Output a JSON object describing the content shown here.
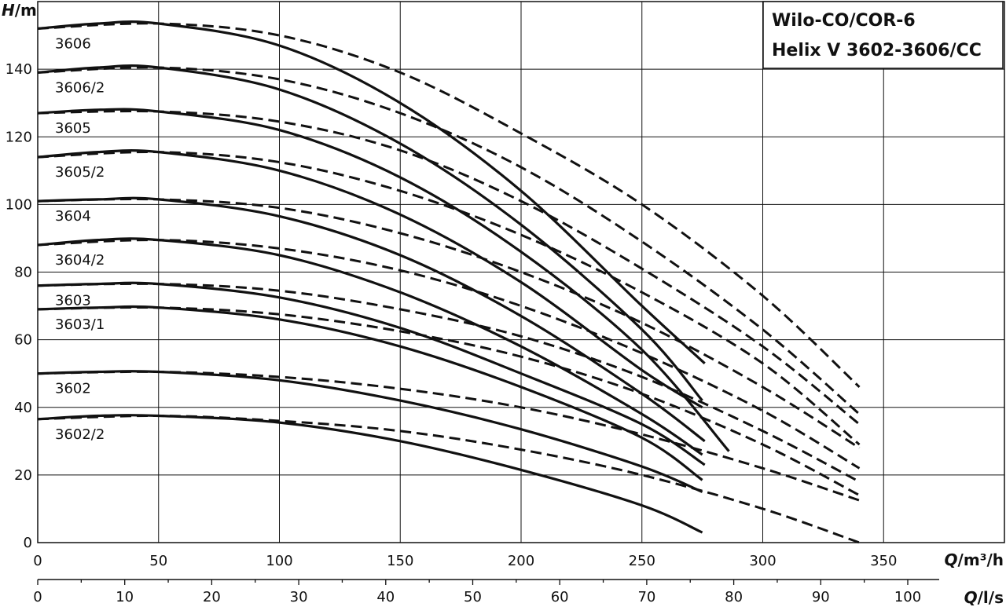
{
  "title_lines": [
    "Wilo-CO/COR-6",
    "Helix V 3602-3606/CC"
  ],
  "chart_data": {
    "type": "line",
    "title": "Wilo-CO/COR-6 Helix V 3602-3606/CC",
    "y_axis": {
      "label_italic": "H",
      "label_unit": "/m",
      "range": [
        0,
        160
      ],
      "ticks": [
        0,
        20,
        40,
        60,
        80,
        100,
        120,
        140
      ],
      "grid": true
    },
    "x_axis_primary": {
      "label_italic": "Q",
      "label_unit": "/m³/h",
      "range": [
        0,
        400
      ],
      "ticks": [
        0,
        50,
        100,
        150,
        200,
        250,
        300,
        350
      ],
      "grid": true
    },
    "x_axis_secondary": {
      "label_italic": "Q",
      "label_unit": "/l/s",
      "ticks": [
        0,
        10,
        20,
        30,
        40,
        50,
        60,
        70,
        80,
        90,
        100
      ]
    },
    "series": [
      {
        "name": "3606",
        "solid": [
          [
            0,
            152
          ],
          [
            25,
            153.5
          ],
          [
            50,
            153.5
          ],
          [
            100,
            147
          ],
          [
            150,
            130
          ],
          [
            200,
            104
          ],
          [
            250,
            70
          ],
          [
            276,
            53
          ]
        ],
        "dashed": [
          [
            0,
            152
          ],
          [
            50,
            153.5
          ],
          [
            100,
            150
          ],
          [
            150,
            139
          ],
          [
            200,
            121
          ],
          [
            250,
            100
          ],
          [
            300,
            73
          ],
          [
            340,
            46
          ]
        ]
      },
      {
        "name": "3606/2",
        "solid": [
          [
            0,
            139
          ],
          [
            25,
            140.5
          ],
          [
            50,
            140.5
          ],
          [
            100,
            134
          ],
          [
            150,
            118
          ],
          [
            200,
            94
          ],
          [
            250,
            63
          ],
          [
            275,
            42
          ]
        ],
        "dashed": [
          [
            0,
            139
          ],
          [
            50,
            140.5
          ],
          [
            100,
            137
          ],
          [
            150,
            127
          ],
          [
            200,
            111
          ],
          [
            250,
            89
          ],
          [
            300,
            63
          ],
          [
            340,
            38
          ]
        ]
      },
      {
        "name": "3605",
        "solid": [
          [
            0,
            127
          ],
          [
            25,
            128
          ],
          [
            50,
            127.5
          ],
          [
            100,
            122
          ],
          [
            150,
            108
          ],
          [
            200,
            86
          ],
          [
            250,
            57
          ],
          [
            286,
            27
          ]
        ],
        "dashed": [
          [
            0,
            127
          ],
          [
            50,
            127.5
          ],
          [
            100,
            124.5
          ],
          [
            150,
            116
          ],
          [
            200,
            101
          ],
          [
            250,
            81
          ],
          [
            300,
            58
          ],
          [
            340,
            35
          ]
        ]
      },
      {
        "name": "3605/2",
        "solid": [
          [
            0,
            114
          ],
          [
            25,
            115.5
          ],
          [
            50,
            115.5
          ],
          [
            100,
            110
          ],
          [
            150,
            97
          ],
          [
            200,
            77
          ],
          [
            250,
            51
          ],
          [
            275,
            40
          ]
        ],
        "dashed": [
          [
            0,
            114
          ],
          [
            50,
            115.5
          ],
          [
            100,
            112.5
          ],
          [
            150,
            104
          ],
          [
            200,
            91
          ],
          [
            250,
            74
          ],
          [
            300,
            53
          ],
          [
            340,
            29
          ]
        ]
      },
      {
        "name": "3604",
        "solid": [
          [
            0,
            101
          ],
          [
            25,
            101.5
          ],
          [
            50,
            101.5
          ],
          [
            100,
            96.5
          ],
          [
            150,
            85
          ],
          [
            200,
            67
          ],
          [
            250,
            44
          ],
          [
            276,
            30
          ]
        ],
        "dashed": [
          [
            0,
            101
          ],
          [
            50,
            101.5
          ],
          [
            100,
            99
          ],
          [
            150,
            91.5
          ],
          [
            200,
            80
          ],
          [
            250,
            65
          ],
          [
            300,
            46
          ],
          [
            340,
            28
          ]
        ]
      },
      {
        "name": "3604/2",
        "solid": [
          [
            0,
            88
          ],
          [
            25,
            89.5
          ],
          [
            50,
            89.5
          ],
          [
            100,
            85
          ],
          [
            150,
            74
          ],
          [
            200,
            58
          ],
          [
            250,
            38
          ],
          [
            275,
            26
          ]
        ],
        "dashed": [
          [
            0,
            88
          ],
          [
            50,
            89.5
          ],
          [
            100,
            87
          ],
          [
            150,
            80.5
          ],
          [
            200,
            70
          ],
          [
            250,
            56
          ],
          [
            300,
            39
          ],
          [
            340,
            22
          ]
        ]
      },
      {
        "name": "3603",
        "solid": [
          [
            0,
            76
          ],
          [
            25,
            76.5
          ],
          [
            50,
            76.5
          ],
          [
            100,
            72.5
          ],
          [
            150,
            63.5
          ],
          [
            200,
            50
          ],
          [
            250,
            35
          ],
          [
            276,
            23
          ]
        ],
        "dashed": [
          [
            0,
            76
          ],
          [
            50,
            76.5
          ],
          [
            100,
            74.5
          ],
          [
            150,
            69
          ],
          [
            200,
            61
          ],
          [
            250,
            49
          ],
          [
            300,
            33
          ],
          [
            340,
            18
          ]
        ]
      },
      {
        "name": "3603/1",
        "solid": [
          [
            0,
            69
          ],
          [
            25,
            69.5
          ],
          [
            50,
            69.5
          ],
          [
            100,
            66
          ],
          [
            150,
            58
          ],
          [
            200,
            46
          ],
          [
            250,
            31
          ],
          [
            275,
            18.5
          ]
        ],
        "dashed": [
          [
            0,
            69
          ],
          [
            50,
            69.5
          ],
          [
            100,
            67.5
          ],
          [
            150,
            62.5
          ],
          [
            200,
            55
          ],
          [
            250,
            44
          ],
          [
            300,
            29
          ],
          [
            340,
            14
          ]
        ]
      },
      {
        "name": "3602",
        "solid": [
          [
            0,
            50
          ],
          [
            25,
            50.5
          ],
          [
            50,
            50.5
          ],
          [
            100,
            48
          ],
          [
            150,
            42
          ],
          [
            200,
            33.5
          ],
          [
            250,
            22.5
          ],
          [
            275,
            15
          ]
        ],
        "dashed": [
          [
            0,
            50
          ],
          [
            50,
            50.5
          ],
          [
            100,
            49
          ],
          [
            150,
            45.5
          ],
          [
            200,
            40
          ],
          [
            250,
            32
          ],
          [
            300,
            22
          ],
          [
            340,
            12.5
          ]
        ]
      },
      {
        "name": "3602/2",
        "solid": [
          [
            0,
            36.5
          ],
          [
            25,
            37.5
          ],
          [
            50,
            37.5
          ],
          [
            100,
            35.5
          ],
          [
            150,
            30
          ],
          [
            200,
            21.5
          ],
          [
            250,
            11
          ],
          [
            275,
            3
          ]
        ],
        "dashed": [
          [
            0,
            36.5
          ],
          [
            50,
            37.5
          ],
          [
            100,
            36
          ],
          [
            150,
            33
          ],
          [
            200,
            27.5
          ],
          [
            250,
            20
          ],
          [
            300,
            10
          ],
          [
            340,
            0
          ]
        ]
      }
    ]
  }
}
